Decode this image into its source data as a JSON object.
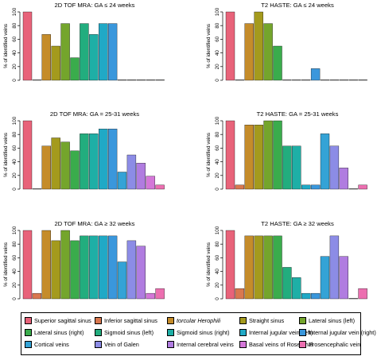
{
  "colors": {
    "Superior sagittal sinus": "#e8637a",
    "Inferior sagittal sinus": "#d9784f",
    "torcular Herophili": "#c58c2a",
    "Straight sinus": "#a49a1d",
    "Lateral sinus (left)": "#74a52c",
    "Lateral sinus (right)": "#3aac4c",
    "Sigmoid sinus (left)": "#22ad7e",
    "Sigmoid sinus (right)": "#1eafa6",
    "Internal jugular vein (left)": "#20a9c6",
    "Internal jugular vein (right)": "#3a97dc",
    "Cortical veins": "#34a3d6",
    "Vein of Galen": "#8c8ce6",
    "Internal cerebral veins": "#b07ce0",
    "Basal veins of Rosenthal": "#d477d8",
    "Prosencephalic vein": "#ec6fb0"
  },
  "chart_data": [
    {
      "type": "bar",
      "title": "2D TOF MRA: GA ≤ 24 weeks",
      "ylabel": "% of identified veins",
      "ylim": [
        0,
        100
      ],
      "yticks": [
        0,
        20,
        40,
        60,
        80,
        100
      ],
      "grid": false,
      "values": [
        100,
        0,
        67,
        50,
        83,
        33,
        83,
        67,
        83,
        83,
        0,
        0,
        0,
        0,
        0
      ]
    },
    {
      "type": "bar",
      "title": "T2 HASTE: GA ≤ 24 weeks",
      "ylabel": "% of identified veins",
      "ylim": [
        0,
        100
      ],
      "yticks": [
        0,
        20,
        40,
        60,
        80,
        100
      ],
      "grid": false,
      "values": [
        100,
        0,
        83,
        100,
        83,
        50,
        0,
        0,
        0,
        17,
        0,
        0,
        0,
        0,
        0
      ]
    },
    {
      "type": "bar",
      "title": "2D TOF MRA: GA = 25-31 weeks",
      "ylabel": "% of identified veins",
      "ylim": [
        0,
        100
      ],
      "yticks": [
        0,
        20,
        40,
        60,
        80,
        100
      ],
      "grid": false,
      "values": [
        100,
        0,
        63,
        75,
        69,
        56,
        81,
        81,
        88,
        88,
        25,
        50,
        38,
        19,
        6
      ]
    },
    {
      "type": "bar",
      "title": "T2 HASTE: GA = 25-31 weeks",
      "ylabel": "% of identified veins",
      "ylim": [
        0,
        100
      ],
      "yticks": [
        0,
        20,
        40,
        60,
        80,
        100
      ],
      "grid": false,
      "values": [
        100,
        6,
        94,
        94,
        100,
        100,
        63,
        63,
        6,
        6,
        81,
        63,
        31,
        0,
        6
      ]
    },
    {
      "type": "bar",
      "title": "2D TOF MRA: GA ≥ 32 weeks",
      "ylabel": "% of identified veins",
      "ylim": [
        0,
        100
      ],
      "yticks": [
        0,
        20,
        40,
        60,
        80,
        100
      ],
      "grid": false,
      "values": [
        100,
        8,
        100,
        85,
        100,
        85,
        92,
        92,
        92,
        92,
        54,
        85,
        77,
        8,
        15
      ]
    },
    {
      "type": "bar",
      "title": "T2 HASTE: GA ≥ 32 weeks",
      "ylabel": "% of identified veins",
      "ylim": [
        0,
        100
      ],
      "yticks": [
        0,
        20,
        40,
        60,
        80,
        100
      ],
      "grid": false,
      "values": [
        100,
        15,
        92,
        92,
        92,
        92,
        46,
        31,
        8,
        8,
        62,
        92,
        62,
        0,
        15
      ]
    }
  ],
  "legend": {
    "placement": "bottom",
    "entries": [
      {
        "label": "Superior sagittal sinus",
        "italic": false
      },
      {
        "label": "Inferior sagittal sinus",
        "italic": false
      },
      {
        "label": "torcular Herophili",
        "italic": true
      },
      {
        "label": "Straight sinus",
        "italic": false
      },
      {
        "label": "Lateral sinus (left)",
        "italic": false
      },
      {
        "label": "Lateral sinus (right)",
        "italic": false
      },
      {
        "label": "Sigmoid sinus (left)",
        "italic": false
      },
      {
        "label": "Sigmoid sinus (right)",
        "italic": false
      },
      {
        "label": "Internal jugular vein (left)",
        "italic": false
      },
      {
        "label": "Internal jugular vein (right)",
        "italic": false
      },
      {
        "label": "Cortical veins",
        "italic": false
      },
      {
        "label": "Vein of Galen",
        "italic": false
      },
      {
        "label": "Internal cerebral veins",
        "italic": false
      },
      {
        "label": "Basal veins of Rosenthal",
        "italic": false
      },
      {
        "label": "Prosencephalic vein",
        "italic": false
      }
    ]
  }
}
